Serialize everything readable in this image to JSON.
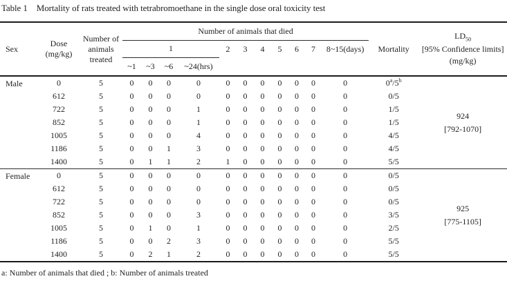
{
  "title": {
    "label": "Table 1",
    "text": "Mortality of rats treated with tetrabromoethane in the single dose oral toxicity test"
  },
  "table": {
    "header": {
      "sex": "Sex",
      "dose": "Dose\n(mg/kg)",
      "treated": "Number of\nanimals\ntreated",
      "died": "Number of animals that died",
      "day1": "1",
      "hours": [
        "~1",
        "~3",
        "~6",
        "~24(hrs)"
      ],
      "days": [
        "2",
        "3",
        "4",
        "5",
        "6",
        "7",
        "8~15(days)"
      ],
      "mortality": "Mortality",
      "ld50_base": "LD",
      "ld50_sub": "50",
      "ld50_ci_label": "[95% Confidence limits]",
      "ld50_unit": "(mg/kg)"
    },
    "groups": [
      {
        "sex": "Male",
        "ld50": "924",
        "ld50_ci": "[792-1070]",
        "rows": [
          {
            "dose": "0",
            "treated": "5",
            "died": [
              "0",
              "0",
              "0",
              "0",
              "0",
              "0",
              "0",
              "0",
              "0",
              "0",
              "0"
            ],
            "mortality": "0{a}/5{b}"
          },
          {
            "dose": "612",
            "treated": "5",
            "died": [
              "0",
              "0",
              "0",
              "0",
              "0",
              "0",
              "0",
              "0",
              "0",
              "0",
              "0"
            ],
            "mortality": "0/5"
          },
          {
            "dose": "722",
            "treated": "5",
            "died": [
              "0",
              "0",
              "0",
              "1",
              "0",
              "0",
              "0",
              "0",
              "0",
              "0",
              "0"
            ],
            "mortality": "1/5"
          },
          {
            "dose": "852",
            "treated": "5",
            "died": [
              "0",
              "0",
              "0",
              "1",
              "0",
              "0",
              "0",
              "0",
              "0",
              "0",
              "0"
            ],
            "mortality": "1/5"
          },
          {
            "dose": "1005",
            "treated": "5",
            "died": [
              "0",
              "0",
              "0",
              "4",
              "0",
              "0",
              "0",
              "0",
              "0",
              "0",
              "0"
            ],
            "mortality": "4/5"
          },
          {
            "dose": "1186",
            "treated": "5",
            "died": [
              "0",
              "0",
              "1",
              "3",
              "0",
              "0",
              "0",
              "0",
              "0",
              "0",
              "0"
            ],
            "mortality": "4/5"
          },
          {
            "dose": "1400",
            "treated": "5",
            "died": [
              "0",
              "1",
              "1",
              "2",
              "1",
              "0",
              "0",
              "0",
              "0",
              "0",
              "0"
            ],
            "mortality": "5/5"
          }
        ]
      },
      {
        "sex": "Female",
        "ld50": "925",
        "ld50_ci": "[775-1105]",
        "rows": [
          {
            "dose": "0",
            "treated": "5",
            "died": [
              "0",
              "0",
              "0",
              "0",
              "0",
              "0",
              "0",
              "0",
              "0",
              "0",
              "0"
            ],
            "mortality": "0/5"
          },
          {
            "dose": "612",
            "treated": "5",
            "died": [
              "0",
              "0",
              "0",
              "0",
              "0",
              "0",
              "0",
              "0",
              "0",
              "0",
              "0"
            ],
            "mortality": "0/5"
          },
          {
            "dose": "722",
            "treated": "5",
            "died": [
              "0",
              "0",
              "0",
              "0",
              "0",
              "0",
              "0",
              "0",
              "0",
              "0",
              "0"
            ],
            "mortality": "0/5"
          },
          {
            "dose": "852",
            "treated": "5",
            "died": [
              "0",
              "0",
              "0",
              "3",
              "0",
              "0",
              "0",
              "0",
              "0",
              "0",
              "0"
            ],
            "mortality": "3/5"
          },
          {
            "dose": "1005",
            "treated": "5",
            "died": [
              "0",
              "1",
              "0",
              "1",
              "0",
              "0",
              "0",
              "0",
              "0",
              "0",
              "0"
            ],
            "mortality": "2/5"
          },
          {
            "dose": "1186",
            "treated": "5",
            "died": [
              "0",
              "0",
              "2",
              "3",
              "0",
              "0",
              "0",
              "0",
              "0",
              "0",
              "0"
            ],
            "mortality": "5/5"
          },
          {
            "dose": "1400",
            "treated": "5",
            "died": [
              "0",
              "2",
              "1",
              "2",
              "0",
              "0",
              "0",
              "0",
              "0",
              "0",
              "0"
            ],
            "mortality": "5/5"
          }
        ]
      }
    ]
  },
  "footnote": "a: Number of animals that died ;  b: Number of animals treated"
}
